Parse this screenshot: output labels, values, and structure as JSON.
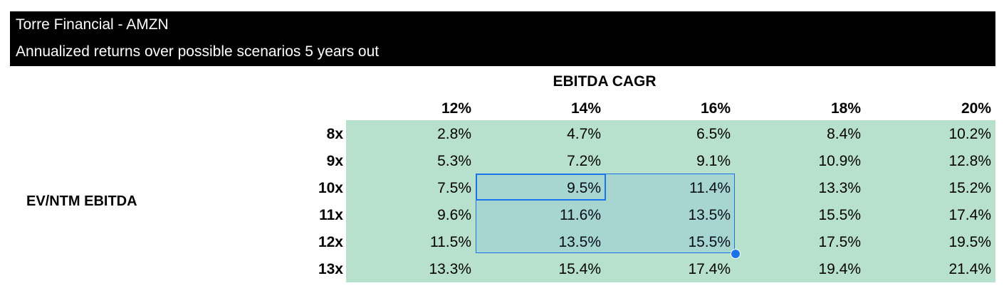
{
  "header": {
    "title": "Torre Financial - AMZN",
    "subtitle": "Annualized returns over possible scenarios 5 years out"
  },
  "table": {
    "column_axis_label": "EBITDA CAGR",
    "row_axis_label": "EV/NTM EBITDA",
    "columns": [
      "12%",
      "14%",
      "16%",
      "18%",
      "20%"
    ],
    "rows": [
      {
        "label": "8x",
        "values": [
          "2.8%",
          "4.7%",
          "6.5%",
          "8.4%",
          "10.2%"
        ]
      },
      {
        "label": "9x",
        "values": [
          "5.3%",
          "7.2%",
          "9.1%",
          "10.9%",
          "12.8%"
        ]
      },
      {
        "label": "10x",
        "values": [
          "7.5%",
          "9.5%",
          "11.4%",
          "13.3%",
          "15.2%"
        ]
      },
      {
        "label": "11x",
        "values": [
          "9.6%",
          "11.6%",
          "13.5%",
          "15.5%",
          "17.4%"
        ]
      },
      {
        "label": "12x",
        "values": [
          "11.5%",
          "13.5%",
          "15.5%",
          "17.5%",
          "19.5%"
        ]
      },
      {
        "label": "13x",
        "values": [
          "13.3%",
          "15.4%",
          "17.4%",
          "19.4%",
          "21.4%"
        ]
      }
    ]
  },
  "selection": {
    "active_cell": "14% / 10x",
    "range": "14%-16% / 10x-12x"
  },
  "colors": {
    "banner_bg": "#000000",
    "banner_text": "#ffffff",
    "cell_fill": "#b7e1cd",
    "selection": "#1a73e8"
  }
}
